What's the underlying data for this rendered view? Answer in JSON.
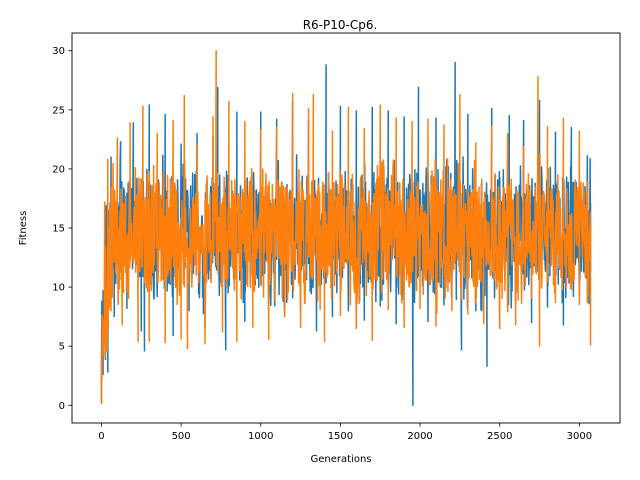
{
  "chart_data": {
    "type": "line",
    "title": "R6-P10-Cp6.",
    "xlabel": "Generations",
    "ylabel": "Fitness",
    "xlim": [
      -185,
      3255
    ],
    "ylim": [
      -1.5,
      31.5
    ],
    "xticks": [
      0,
      500,
      1000,
      1500,
      2000,
      2500,
      3000
    ],
    "yticks": [
      0,
      5,
      10,
      15,
      20,
      25,
      30
    ],
    "x_range": [
      0,
      3070
    ],
    "grid": false,
    "legend": "none",
    "series": [
      {
        "color": "#1f77b4",
        "points": [
          [
            0,
            0.3
          ],
          [
            10,
            2.6
          ],
          [
            20,
            11.2
          ],
          [
            30,
            16.9
          ],
          [
            40,
            2.8
          ],
          [
            60,
            21.0
          ],
          [
            80,
            7.5
          ],
          [
            120,
            22.3
          ],
          [
            160,
            8.2
          ],
          [
            200,
            23.9
          ],
          [
            250,
            6.3
          ],
          [
            270,
            4.6
          ],
          [
            300,
            25.4
          ],
          [
            350,
            9.2
          ],
          [
            400,
            24.6
          ],
          [
            450,
            5.9
          ],
          [
            500,
            22.1
          ],
          [
            550,
            8.0
          ],
          [
            600,
            23.0
          ],
          [
            650,
            6.6
          ],
          [
            700,
            22.8
          ],
          [
            730,
            26.9
          ],
          [
            780,
            4.7
          ],
          [
            850,
            24.8
          ],
          [
            900,
            7.1
          ],
          [
            1000,
            24.8
          ],
          [
            1050,
            6.9
          ],
          [
            1100,
            24.2
          ],
          [
            1150,
            7.8
          ],
          [
            1200,
            25.7
          ],
          [
            1250,
            8.1
          ],
          [
            1300,
            24.1
          ],
          [
            1350,
            6.3
          ],
          [
            1410,
            28.8
          ],
          [
            1450,
            7.5
          ],
          [
            1500,
            25.3
          ],
          [
            1550,
            8.0
          ],
          [
            1600,
            24.9
          ],
          [
            1650,
            7.2
          ],
          [
            1700,
            25.2
          ],
          [
            1750,
            8.4
          ],
          [
            1800,
            24.9
          ],
          [
            1850,
            6.9
          ],
          [
            1900,
            24.4
          ],
          [
            1955,
            0.0
          ],
          [
            1990,
            26.9
          ],
          [
            2050,
            7.1
          ],
          [
            2100,
            24.3
          ],
          [
            2150,
            8.5
          ],
          [
            2220,
            29.0
          ],
          [
            2260,
            4.7
          ],
          [
            2300,
            24.6
          ],
          [
            2350,
            8.0
          ],
          [
            2420,
            3.3
          ],
          [
            2450,
            25.1
          ],
          [
            2500,
            7.6
          ],
          [
            2560,
            24.5
          ],
          [
            2600,
            8.6
          ],
          [
            2650,
            24.1
          ],
          [
            2700,
            7.0
          ],
          [
            2750,
            25.8
          ],
          [
            2800,
            8.3
          ],
          [
            2850,
            23.1
          ],
          [
            2900,
            6.8
          ],
          [
            2950,
            23.5
          ],
          [
            3000,
            9.3
          ],
          [
            3050,
            21.1
          ],
          [
            3070,
            11.3
          ]
        ]
      },
      {
        "color": "#ff7f0e",
        "points": [
          [
            0,
            0.1
          ],
          [
            10,
            5.0
          ],
          [
            20,
            17.2
          ],
          [
            40,
            20.8
          ],
          [
            60,
            8.0
          ],
          [
            100,
            22.6
          ],
          [
            130,
            6.8
          ],
          [
            180,
            23.9
          ],
          [
            230,
            5.4
          ],
          [
            260,
            25.3
          ],
          [
            300,
            5.4
          ],
          [
            350,
            23.0
          ],
          [
            400,
            5.3
          ],
          [
            450,
            24.1
          ],
          [
            500,
            5.6
          ],
          [
            520,
            26.2
          ],
          [
            540,
            4.8
          ],
          [
            600,
            22.1
          ],
          [
            650,
            5.2
          ],
          [
            700,
            24.4
          ],
          [
            720,
            30.0
          ],
          [
            760,
            6.2
          ],
          [
            800,
            25.7
          ],
          [
            850,
            5.4
          ],
          [
            900,
            24.0
          ],
          [
            950,
            6.6
          ],
          [
            1000,
            23.3
          ],
          [
            1050,
            5.6
          ],
          [
            1100,
            23.5
          ],
          [
            1150,
            7.5
          ],
          [
            1200,
            26.4
          ],
          [
            1250,
            6.6
          ],
          [
            1300,
            25.1
          ],
          [
            1330,
            26.3
          ],
          [
            1400,
            5.4
          ],
          [
            1450,
            23.2
          ],
          [
            1500,
            7.6
          ],
          [
            1550,
            25.2
          ],
          [
            1600,
            6.5
          ],
          [
            1650,
            23.4
          ],
          [
            1700,
            5.5
          ],
          [
            1750,
            25.4
          ],
          [
            1800,
            8.1
          ],
          [
            1850,
            24.3
          ],
          [
            1900,
            6.6
          ],
          [
            1950,
            24.0
          ],
          [
            2000,
            8.2
          ],
          [
            2050,
            24.2
          ],
          [
            2100,
            6.7
          ],
          [
            2150,
            23.7
          ],
          [
            2200,
            8.0
          ],
          [
            2250,
            26.3
          ],
          [
            2300,
            7.7
          ],
          [
            2350,
            22.2
          ],
          [
            2400,
            6.9
          ],
          [
            2450,
            23.6
          ],
          [
            2500,
            6.5
          ],
          [
            2550,
            23.0
          ],
          [
            2600,
            6.8
          ],
          [
            2650,
            21.9
          ],
          [
            2700,
            9.1
          ],
          [
            2740,
            27.8
          ],
          [
            2750,
            5.0
          ],
          [
            2800,
            23.6
          ],
          [
            2850,
            8.7
          ],
          [
            2900,
            24.3
          ],
          [
            2950,
            9.8
          ],
          [
            3000,
            23.2
          ],
          [
            3050,
            8.7
          ],
          [
            3070,
            5.1
          ]
        ]
      }
    ]
  }
}
